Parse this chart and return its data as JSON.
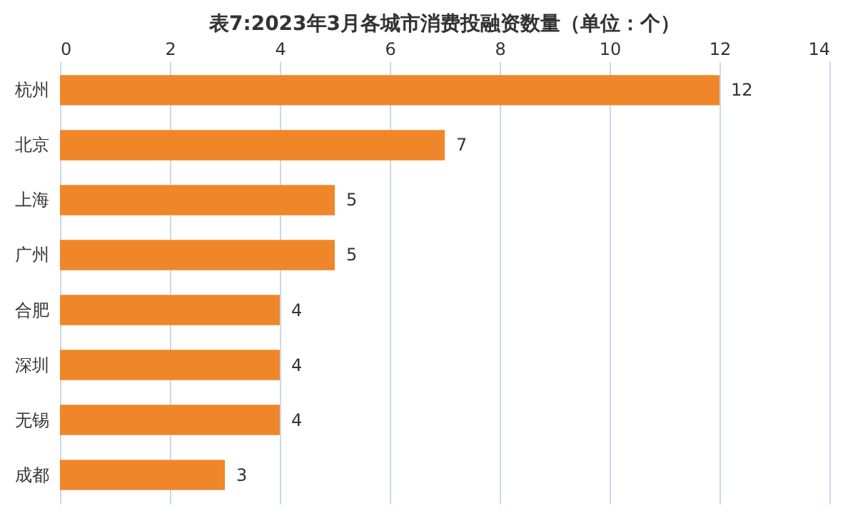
{
  "chart_data": {
    "type": "bar",
    "orientation": "horizontal",
    "title": "表7:2023年3月各城市消费投融资数量（单位：个）",
    "categories": [
      "杭州",
      "北京",
      "上海",
      "广州",
      "合肥",
      "深圳",
      "无锡",
      "成都"
    ],
    "values": [
      12,
      7,
      5,
      5,
      4,
      4,
      4,
      3
    ],
    "color": "#f0862a",
    "xlim": [
      0,
      14
    ],
    "xticks": [
      0,
      2,
      4,
      6,
      8,
      10,
      12,
      14
    ],
    "grid": "x",
    "data_labels": true
  }
}
